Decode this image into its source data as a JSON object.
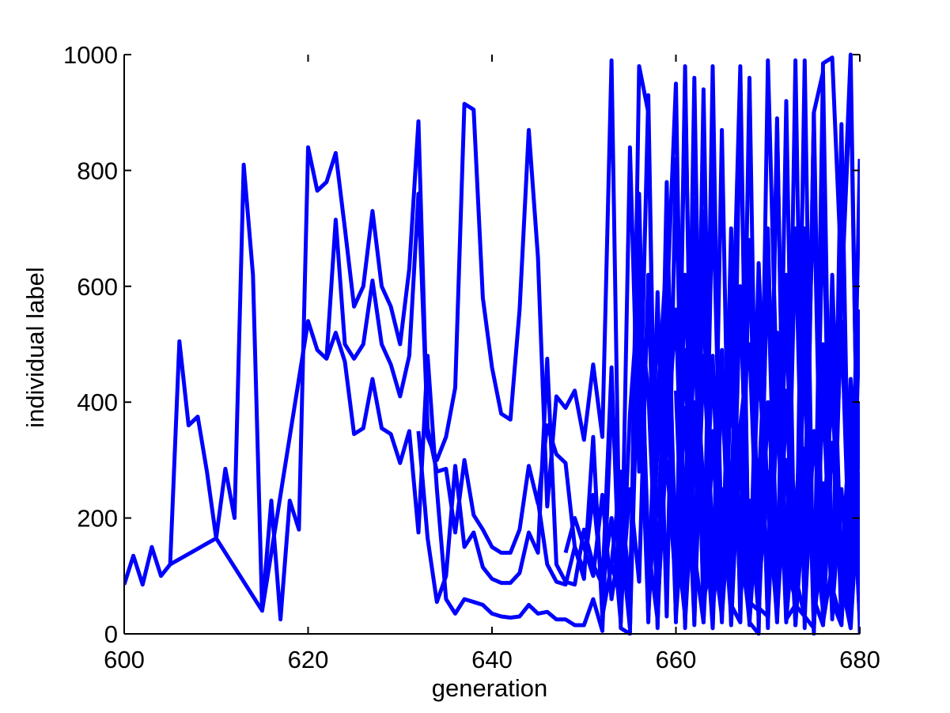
{
  "chart_data": {
    "type": "line",
    "title": "",
    "xlabel": "generation",
    "ylabel": "individual label",
    "xlim": [
      600,
      680
    ],
    "ylim": [
      0,
      1000
    ],
    "xticks": [
      600,
      620,
      640,
      660,
      680
    ],
    "yticks": [
      0,
      200,
      400,
      600,
      800,
      1000
    ],
    "grid": false,
    "legend": "none",
    "line_color": "#0000ff",
    "series": [
      {
        "x": [
          600,
          601,
          602,
          603,
          604,
          605,
          606,
          607,
          608,
          609,
          610,
          611,
          612,
          613,
          614,
          615,
          616,
          617,
          618,
          619,
          620,
          621,
          622,
          623,
          624,
          625,
          626,
          627,
          628,
          629,
          630,
          631,
          632,
          633,
          634,
          635,
          636,
          637,
          638,
          639,
          640,
          641,
          642,
          643,
          644,
          645,
          646,
          647,
          648,
          649,
          650,
          651,
          652,
          653,
          654,
          655,
          656,
          657,
          658,
          659,
          660,
          661,
          662,
          663,
          664,
          665,
          666,
          667,
          668,
          669,
          670,
          671,
          672,
          673,
          674,
          675,
          676,
          677,
          678,
          679,
          680
        ],
        "values": [
          85,
          135,
          85,
          150,
          100,
          120,
          505,
          360,
          375,
          280,
          165,
          285,
          200,
          810,
          620,
          40,
          230,
          25,
          230,
          180,
          840,
          765,
          780,
          830,
          700,
          565,
          600,
          730,
          600,
          565,
          500,
          630,
          885,
          340,
          300,
          340,
          425,
          915,
          905,
          580,
          460,
          380,
          370,
          560,
          870,
          650,
          220,
          410,
          390,
          420,
          335,
          465,
          340,
          990,
          10,
          0,
          980,
          900,
          15,
          560,
          950,
          15,
          960,
          20,
          780,
          140,
          410,
          980,
          20,
          0,
          990,
          400,
          620,
          15,
          990,
          0,
          985,
          995,
          620,
          1000,
          0
        ]
      },
      {
        "x": [
          605,
          610,
          615,
          620,
          621,
          622,
          623,
          624,
          625,
          626,
          627,
          628,
          629,
          630,
          631,
          632,
          633,
          634,
          635,
          636,
          637,
          638,
          639,
          640,
          641,
          642,
          643,
          644,
          645,
          646,
          647,
          648,
          649,
          650,
          651,
          652,
          653,
          654,
          655,
          656,
          657,
          658,
          659,
          660,
          661,
          662,
          663,
          664,
          665,
          666,
          667,
          668,
          669,
          670,
          671,
          672,
          673,
          674,
          675,
          676,
          677,
          678,
          679,
          680
        ],
        "values": [
          120,
          165,
          40,
          540,
          490,
          475,
          715,
          500,
          475,
          500,
          610,
          500,
          465,
          410,
          480,
          760,
          355,
          280,
          285,
          175,
          300,
          205,
          180,
          150,
          140,
          140,
          180,
          290,
          225,
          360,
          310,
          295,
          150,
          110,
          240,
          80,
          460,
          20,
          840,
          280,
          930,
          10,
          780,
          20,
          960,
          25,
          940,
          10,
          870,
          20,
          950,
          15,
          560,
          10,
          880,
          20,
          990,
          10,
          900,
          970,
          25,
          580,
          960,
          40
        ]
      },
      {
        "x": [
          622,
          623,
          624,
          625,
          626,
          627,
          628,
          629,
          630,
          631,
          632,
          633,
          634,
          635,
          636,
          637,
          638,
          639,
          640,
          641,
          642,
          643,
          644,
          645,
          646,
          647,
          648,
          649,
          650,
          651,
          652,
          653,
          654,
          655,
          656,
          657,
          658,
          659,
          660,
          661,
          662,
          663,
          664,
          665,
          666,
          667,
          668,
          669,
          670,
          671,
          672,
          673,
          674,
          675,
          676,
          677,
          678,
          679,
          680
        ],
        "values": [
          475,
          520,
          470,
          345,
          355,
          440,
          355,
          345,
          295,
          350,
          175,
          480,
          250,
          60,
          35,
          60,
          55,
          50,
          35,
          30,
          28,
          30,
          50,
          35,
          38,
          25,
          25,
          15,
          15,
          60,
          5,
          400,
          230,
          80,
          640,
          20,
          590,
          30,
          820,
          10,
          750,
          20,
          980,
          35,
          700,
          25,
          960,
          10,
          700,
          30,
          920,
          15,
          560,
          5,
          420,
          30,
          880,
          10,
          400
        ]
      },
      {
        "x": [
          632,
          633,
          634,
          635,
          636,
          637,
          638,
          639,
          640,
          641,
          642,
          643,
          644,
          645,
          646,
          647,
          648,
          649,
          650,
          651,
          652,
          653,
          654,
          655,
          656,
          657,
          658,
          659,
          660,
          661,
          662,
          663,
          664,
          665,
          666,
          667,
          668,
          669,
          670,
          671,
          672,
          673,
          674,
          675,
          676,
          677,
          678,
          679,
          680
        ],
        "values": [
          350,
          165,
          55,
          100,
          290,
          150,
          175,
          115,
          95,
          88,
          88,
          105,
          175,
          140,
          475,
          120,
          90,
          85,
          180,
          120,
          85,
          200,
          20,
          380,
          600,
          150,
          25,
          640,
          40,
          980,
          15,
          730,
          40,
          210,
          50,
          20,
          680,
          45,
          30,
          890,
          25,
          50,
          30,
          10,
          760,
          55,
          15,
          350,
          20
        ]
      },
      {
        "x": [
          645,
          646,
          647,
          648,
          649,
          650,
          651,
          652,
          653,
          654,
          655,
          656,
          657,
          658,
          659,
          660,
          661,
          662,
          663,
          664,
          665,
          666,
          667,
          668,
          669,
          670,
          671,
          672,
          673,
          674,
          675,
          676,
          677,
          678,
          679,
          680
        ],
        "values": [
          230,
          120,
          90,
          85,
          150,
          95,
          340,
          30,
          120,
          280,
          10,
          760,
          50,
          400,
          660,
          120,
          490,
          45,
          650,
          70,
          440,
          30,
          600,
          55,
          40,
          670,
          100,
          560,
          15,
          240,
          780,
          20,
          120,
          540,
          60,
          820
        ]
      },
      {
        "x": [
          648,
          649,
          650,
          651,
          652,
          653,
          654,
          655,
          656,
          657,
          658,
          659,
          660,
          661,
          662,
          663,
          664,
          665,
          666,
          667,
          668,
          669,
          670,
          671,
          672,
          673,
          674,
          675,
          676,
          677,
          678,
          679,
          680
        ],
        "values": [
          140,
          200,
          150,
          100,
          240,
          60,
          170,
          10,
          560,
          420,
          40,
          330,
          560,
          35,
          620,
          90,
          480,
          40,
          580,
          150,
          30,
          640,
          210,
          400,
          20,
          700,
          30,
          900,
          15,
          620,
          90,
          10,
          280
        ]
      },
      {
        "x": [
          653,
          654,
          655,
          656,
          657,
          658,
          659,
          660,
          661,
          662,
          663,
          664,
          665,
          666,
          667,
          668,
          669,
          670,
          671,
          672,
          673,
          674,
          675,
          676,
          677,
          678,
          679,
          680
        ],
        "values": [
          120,
          60,
          250,
          90,
          620,
          20,
          410,
          180,
          30,
          520,
          250,
          10,
          440,
          80,
          300,
          40,
          560,
          20,
          380,
          120,
          60,
          700,
          10,
          500,
          40,
          250,
          15,
          360
        ]
      },
      {
        "x": [
          656,
          657,
          658,
          659,
          660,
          661,
          662,
          663,
          664,
          665,
          666,
          667,
          668,
          669,
          670,
          671,
          672,
          673,
          674,
          675,
          676,
          677,
          678,
          679,
          680
        ],
        "values": [
          470,
          30,
          320,
          560,
          90,
          390,
          20,
          480,
          160,
          30,
          260,
          600,
          45,
          300,
          120,
          520,
          25,
          210,
          440,
          60,
          15,
          330,
          140,
          30,
          560
        ]
      },
      {
        "x": [
          658,
          659,
          660,
          661,
          662,
          663,
          664,
          665,
          666,
          667,
          668,
          669,
          670,
          671,
          672,
          673,
          674,
          675,
          676,
          677,
          678,
          679,
          680
        ],
        "values": [
          200,
          470,
          30,
          250,
          540,
          60,
          130,
          490,
          15,
          360,
          80,
          470,
          220,
          30,
          300,
          150,
          600,
          20,
          180,
          420,
          60,
          250,
          90
        ]
      },
      {
        "x": [
          659,
          660,
          661,
          662,
          663,
          664,
          665,
          666,
          667,
          668,
          669,
          670,
          671,
          672,
          673,
          674,
          675,
          676,
          677,
          678,
          679,
          680
        ],
        "values": [
          300,
          80,
          620,
          140,
          20,
          330,
          60,
          420,
          180,
          20,
          250,
          620,
          50,
          400,
          100,
          30,
          350,
          120,
          460,
          20,
          300,
          50
        ]
      },
      {
        "x": [
          660,
          661,
          662,
          663,
          664,
          665,
          666,
          667,
          668,
          669,
          670,
          671,
          672,
          673,
          674,
          675,
          676,
          677,
          678,
          679,
          680
        ],
        "values": [
          420,
          20,
          300,
          580,
          90,
          250,
          30,
          360,
          500,
          70,
          280,
          20,
          420,
          60,
          320,
          180,
          40,
          560,
          100,
          380,
          20
        ]
      },
      {
        "x": [
          661,
          662,
          663,
          664,
          665,
          666,
          667,
          668,
          669,
          670,
          671,
          672,
          673,
          674,
          675,
          676,
          677,
          678,
          679,
          680
        ],
        "values": [
          60,
          400,
          110,
          350,
          20,
          480,
          60,
          230,
          30,
          400,
          140,
          300,
          20,
          500,
          60,
          260,
          80,
          20,
          440,
          150
        ]
      }
    ]
  }
}
